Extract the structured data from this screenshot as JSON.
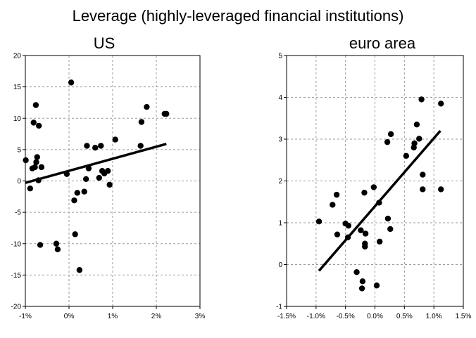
{
  "title": "Leverage (highly-leveraged financial institutions)",
  "chart_data": [
    {
      "type": "scatter",
      "title": "US",
      "xlim": [
        -0.01,
        0.03
      ],
      "ylim": [
        -20,
        20
      ],
      "x_ticks": [
        -0.01,
        0,
        0.01,
        0.02,
        0.03
      ],
      "x_tick_labels": [
        "-1%",
        "0%",
        "1%",
        "2%",
        "3%"
      ],
      "y_ticks": [
        -20,
        -15,
        -10,
        -5,
        0,
        5,
        10,
        15,
        20
      ],
      "y_tick_labels": [
        "-20",
        "-15",
        "-10",
        "-5",
        "0",
        "5",
        "10",
        "15",
        "20"
      ],
      "grid": true,
      "x": [
        -0.0099,
        -0.0089,
        -0.0084,
        -0.0081,
        -0.0078,
        -0.0076,
        -0.0075,
        -0.0073,
        -0.007,
        -0.0069,
        -0.0066,
        -0.0063,
        -0.0029,
        -0.0026,
        -0.0005,
        0.0005,
        0.0012,
        0.0014,
        0.0019,
        0.0024,
        0.0035,
        0.0039,
        0.0041,
        0.0045,
        0.006,
        0.0069,
        0.0073,
        0.0076,
        0.0081,
        0.0089,
        0.0093,
        0.0106,
        0.0164,
        0.0166,
        0.0178,
        0.0219,
        0.0223
      ],
      "y": [
        3.3,
        -1.2,
        2.0,
        9.3,
        2.2,
        12.1,
        3.0,
        3.8,
        0.1,
        8.8,
        -10.2,
        2.2,
        -10.0,
        -10.9,
        1.1,
        15.7,
        -3.1,
        -8.5,
        -1.9,
        -14.2,
        -1.7,
        0.3,
        5.6,
        2.0,
        5.3,
        0.5,
        5.6,
        1.6,
        1.2,
        1.6,
        -0.6,
        6.6,
        5.6,
        9.4,
        11.8,
        10.7,
        10.7
      ],
      "trend_line": {
        "x": [
          -0.01,
          0.0223
        ],
        "y": [
          -0.3,
          5.9
        ]
      }
    },
    {
      "type": "scatter",
      "title": "euro area",
      "xlim": [
        -0.015,
        0.015
      ],
      "ylim": [
        -1,
        5
      ],
      "x_ticks": [
        -0.015,
        -0.01,
        -0.005,
        0,
        0.005,
        0.01,
        0.015
      ],
      "x_tick_labels": [
        "-1.5%",
        "-1.0%",
        "-0.5%",
        "0.0%",
        "0.5%",
        "1.0%",
        "1.5%"
      ],
      "y_ticks": [
        -1,
        0,
        1,
        2,
        3,
        4,
        5
      ],
      "y_tick_labels": [
        "-1",
        "0",
        "1",
        "2",
        "3",
        "4",
        "5"
      ],
      "grid": true,
      "x": [
        -0.0095,
        -0.0072,
        -0.0065,
        -0.0064,
        -0.005,
        -0.0046,
        -0.0045,
        -0.0031,
        -0.0024,
        -0.0022,
        -0.0021,
        -0.0018,
        -0.0017,
        -0.0017,
        -0.0016,
        -0.0002,
        0.0003,
        0.0007,
        0.0008,
        0.0021,
        0.0022,
        0.0026,
        0.0027,
        0.0053,
        0.0066,
        0.0067,
        0.0071,
        0.0075,
        0.0079,
        0.0081,
        0.0112
      ],
      "y": [
        1.03,
        1.43,
        1.67,
        0.72,
        0.98,
        0.65,
        0.93,
        -0.18,
        0.82,
        -0.57,
        -0.4,
        1.72,
        0.43,
        0.5,
        0.74,
        1.85,
        -0.5,
        1.48,
        0.55,
        2.93,
        1.1,
        0.85,
        3.12,
        2.6,
        2.8,
        2.9,
        3.35,
        3.01,
        3.95,
        2.15,
        1.8
      ],
      "extra_x": [
        0.0081,
        0.0112
      ],
      "extra_y": [
        1.8,
        3.85
      ],
      "trend_line": {
        "x": [
          -0.0095,
          0.0111
        ],
        "y": [
          -0.15,
          3.2
        ]
      }
    }
  ]
}
